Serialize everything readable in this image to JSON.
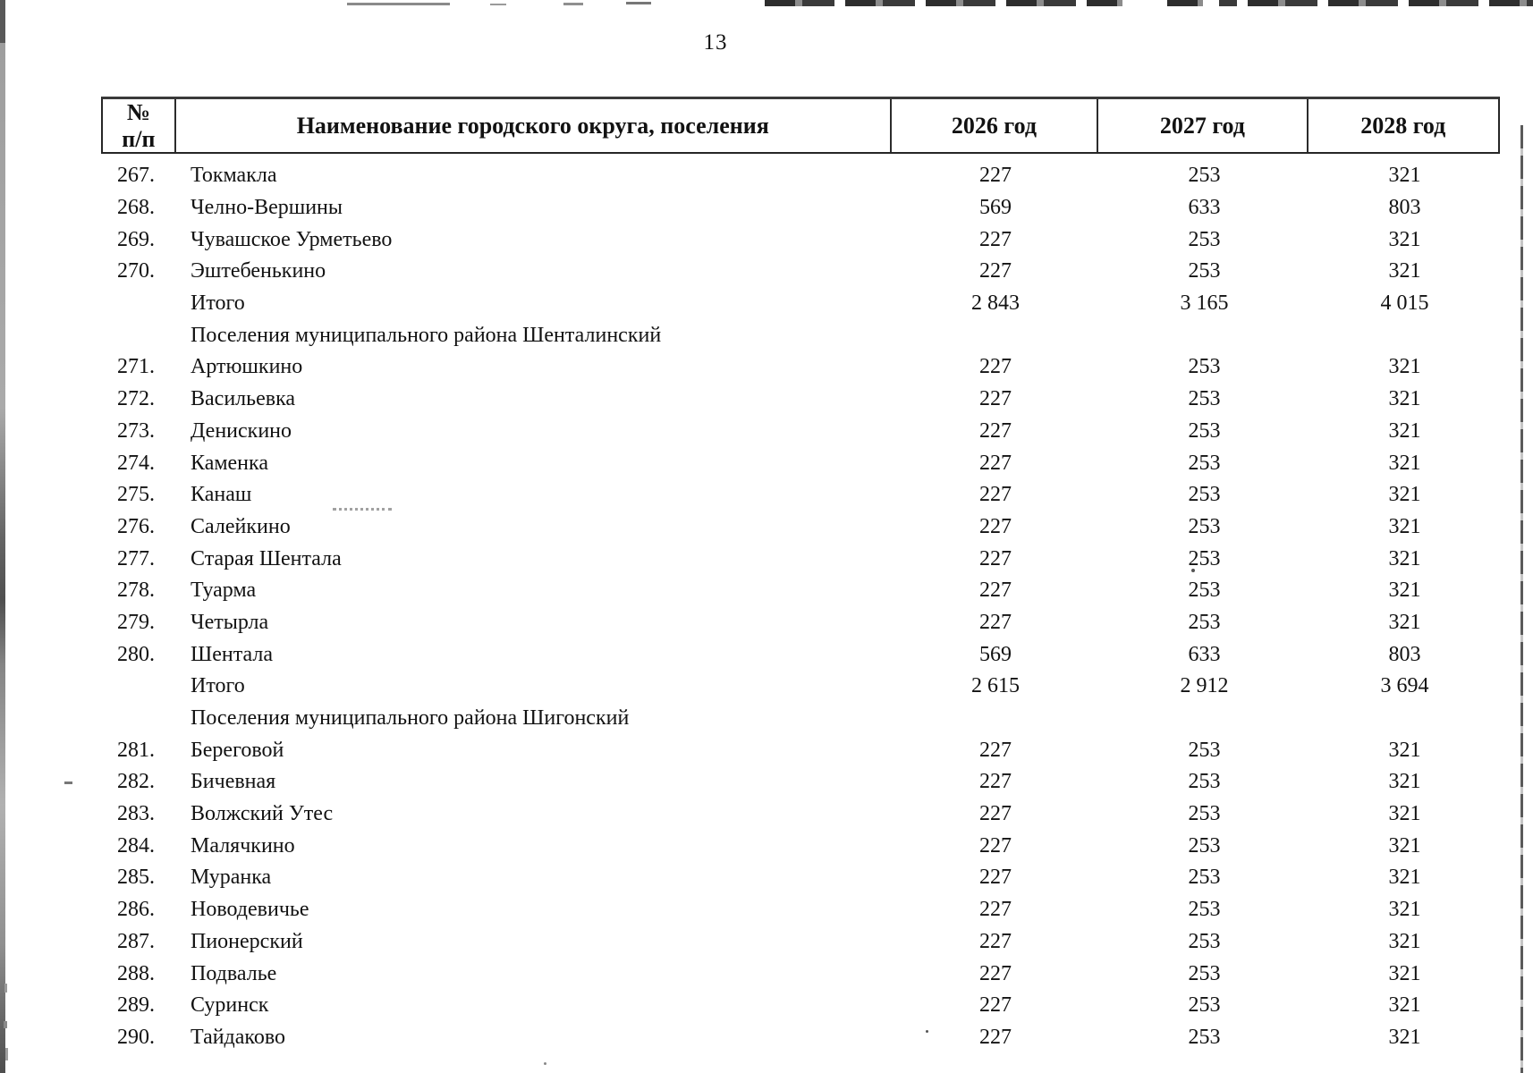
{
  "page": {
    "number": "13"
  },
  "table": {
    "header": {
      "num_line1": "№",
      "num_line2": "п/п",
      "name": "Наименование городского округа, поселения",
      "y2026": "2026 год",
      "y2027": "2027 год",
      "y2028": "2028 год"
    },
    "rows": [
      {
        "type": "data",
        "num": "267.",
        "name": "Токмакла",
        "v2026": "227",
        "v2027": "253",
        "v2028": "321"
      },
      {
        "type": "data",
        "num": "268.",
        "name": "Челно-Вершины",
        "v2026": "569",
        "v2027": "633",
        "v2028": "803"
      },
      {
        "type": "data",
        "num": "269.",
        "name": "Чувашское Урметьево",
        "v2026": "227",
        "v2027": "253",
        "v2028": "321"
      },
      {
        "type": "data",
        "num": "270.",
        "name": "Эштебенькино",
        "v2026": "227",
        "v2027": "253",
        "v2028": "321"
      },
      {
        "type": "total",
        "num": "",
        "name": "Итого",
        "v2026": "2 843",
        "v2027": "3 165",
        "v2028": "4 015"
      },
      {
        "type": "section",
        "num": "",
        "name": "Поселения муниципального района Шенталинский",
        "v2026": "",
        "v2027": "",
        "v2028": ""
      },
      {
        "type": "data",
        "num": "271.",
        "name": "Артюшкино",
        "v2026": "227",
        "v2027": "253",
        "v2028": "321"
      },
      {
        "type": "data",
        "num": "272.",
        "name": "Васильевка",
        "v2026": "227",
        "v2027": "253",
        "v2028": "321"
      },
      {
        "type": "data",
        "num": "273.",
        "name": "Денискино",
        "v2026": "227",
        "v2027": "253",
        "v2028": "321"
      },
      {
        "type": "data",
        "num": "274.",
        "name": "Каменка",
        "v2026": "227",
        "v2027": "253",
        "v2028": "321"
      },
      {
        "type": "data",
        "num": "275.",
        "name": "Канаш",
        "v2026": "227",
        "v2027": "253",
        "v2028": "321"
      },
      {
        "type": "data",
        "num": "276.",
        "name": "Салейкино",
        "v2026": "227",
        "v2027": "253",
        "v2028": "321"
      },
      {
        "type": "data",
        "num": "277.",
        "name": "Старая Шентала",
        "v2026": "227",
        "v2027": "253",
        "v2028": "321"
      },
      {
        "type": "data",
        "num": "278.",
        "name": "Туарма",
        "v2026": "227",
        "v2027": "253",
        "v2028": "321"
      },
      {
        "type": "data",
        "num": "279.",
        "name": "Четырла",
        "v2026": "227",
        "v2027": "253",
        "v2028": "321"
      },
      {
        "type": "data",
        "num": "280.",
        "name": "Шентала",
        "v2026": "569",
        "v2027": "633",
        "v2028": "803"
      },
      {
        "type": "total",
        "num": "",
        "name": "Итого",
        "v2026": "2 615",
        "v2027": "2 912",
        "v2028": "3 694"
      },
      {
        "type": "section",
        "num": "",
        "name": "Поселения муниципального района Шигонский",
        "v2026": "",
        "v2027": "",
        "v2028": ""
      },
      {
        "type": "data",
        "num": "281.",
        "name": "Береговой",
        "v2026": "227",
        "v2027": "253",
        "v2028": "321"
      },
      {
        "type": "data",
        "num": "282.",
        "name": "Бичевная",
        "v2026": "227",
        "v2027": "253",
        "v2028": "321"
      },
      {
        "type": "data",
        "num": "283.",
        "name": "Волжский Утес",
        "v2026": "227",
        "v2027": "253",
        "v2028": "321"
      },
      {
        "type": "data",
        "num": "284.",
        "name": "Малячкино",
        "v2026": "227",
        "v2027": "253",
        "v2028": "321"
      },
      {
        "type": "data",
        "num": "285.",
        "name": "Муранка",
        "v2026": "227",
        "v2027": "253",
        "v2028": "321"
      },
      {
        "type": "data",
        "num": "286.",
        "name": "Новодевичье",
        "v2026": "227",
        "v2027": "253",
        "v2028": "321"
      },
      {
        "type": "data",
        "num": "287.",
        "name": "Пионерский",
        "v2026": "227",
        "v2027": "253",
        "v2028": "321"
      },
      {
        "type": "data",
        "num": "288.",
        "name": "Подвалье",
        "v2026": "227",
        "v2027": "253",
        "v2028": "321"
      },
      {
        "type": "data",
        "num": "289.",
        "name": "Суринск",
        "v2026": "227",
        "v2027": "253",
        "v2028": "321"
      },
      {
        "type": "data",
        "num": "290.",
        "name": "Тайдаково",
        "v2026": "227",
        "v2027": "253",
        "v2028": "321"
      }
    ]
  }
}
